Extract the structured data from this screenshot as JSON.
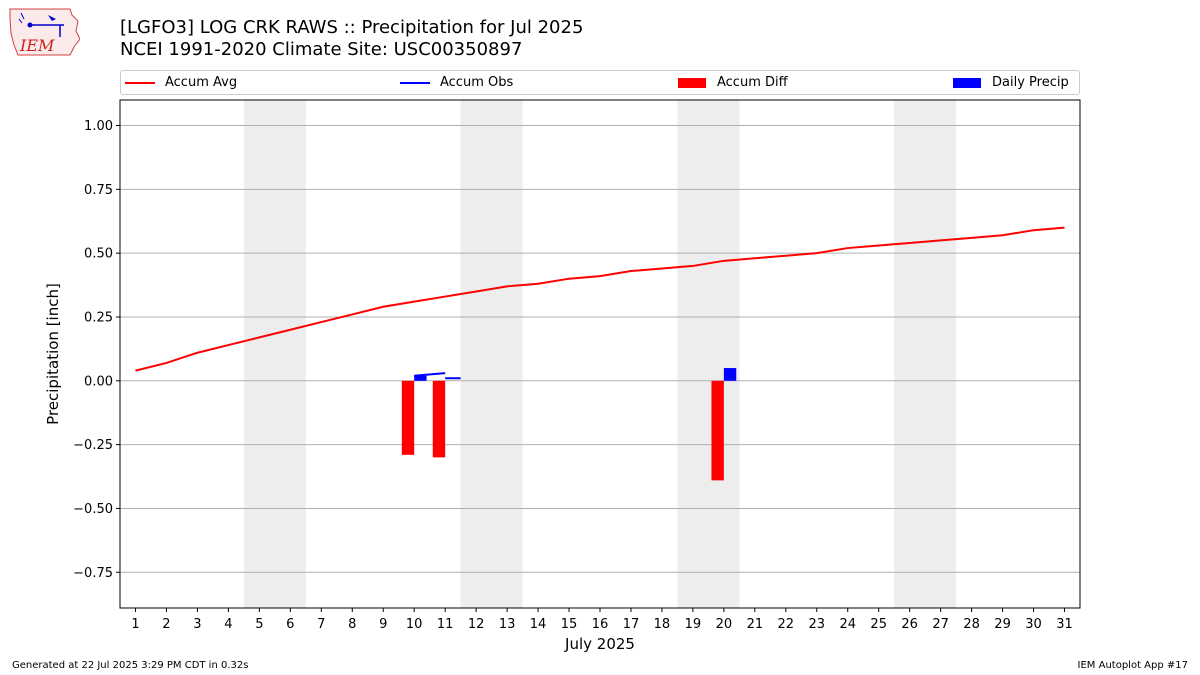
{
  "header": {
    "title_line1": "[LGFO3] LOG CRK RAWS :: Precipitation for Jul 2025",
    "title_line2": "NCEI 1991-2020 Climate Site: USC00350897",
    "logo_text": "IEM"
  },
  "legend": {
    "items": [
      {
        "label": "Accum Avg",
        "color": "#ff0000",
        "kind": "line"
      },
      {
        "label": "Accum Obs",
        "color": "#0000ff",
        "kind": "line"
      },
      {
        "label": "Accum Diff",
        "color": "#ff0000",
        "kind": "rect"
      },
      {
        "label": "Daily Precip",
        "color": "#0000ff",
        "kind": "rect"
      }
    ]
  },
  "footer": {
    "left": "Generated at 22 Jul 2025 3:29 PM CDT in 0.32s",
    "right": "IEM Autoplot App #17"
  },
  "chart_data": {
    "type": "bar",
    "xlabel": "July 2025",
    "ylabel": "Precipitation [inch]",
    "x": [
      1,
      2,
      3,
      4,
      5,
      6,
      7,
      8,
      9,
      10,
      11,
      12,
      13,
      14,
      15,
      16,
      17,
      18,
      19,
      20,
      21,
      22,
      23,
      24,
      25,
      26,
      27,
      28,
      29,
      30,
      31
    ],
    "xlim": [
      0.5,
      31.5
    ],
    "ylim": [
      -0.89,
      1.1
    ],
    "yticks": [
      1.0,
      0.75,
      0.5,
      0.25,
      0.0,
      -0.25,
      -0.5,
      -0.75
    ],
    "ytick_labels": [
      "1.00",
      "0.75",
      "0.50",
      "0.25",
      "0.00",
      "−0.25",
      "−0.50",
      "−0.75"
    ],
    "grid": "y",
    "weekend_bands": [
      [
        4.5,
        6.5
      ],
      [
        11.5,
        13.5
      ],
      [
        18.5,
        20.5
      ],
      [
        25.5,
        27.5
      ]
    ],
    "series": [
      {
        "name": "Accum Avg",
        "kind": "line",
        "color": "#ff0000",
        "x": [
          1,
          2,
          3,
          4,
          5,
          6,
          7,
          8,
          9,
          10,
          11,
          12,
          13,
          14,
          15,
          16,
          17,
          18,
          19,
          20,
          21,
          22,
          23,
          24,
          25,
          26,
          27,
          28,
          29,
          30,
          31
        ],
        "values": [
          0.04,
          0.07,
          0.11,
          0.14,
          0.17,
          0.2,
          0.23,
          0.26,
          0.29,
          0.31,
          0.33,
          0.35,
          0.37,
          0.38,
          0.4,
          0.41,
          0.43,
          0.44,
          0.45,
          0.47,
          0.48,
          0.49,
          0.5,
          0.52,
          0.53,
          0.54,
          0.55,
          0.56,
          0.57,
          0.59,
          0.6
        ]
      },
      {
        "name": "Accum Obs",
        "kind": "line",
        "color": "#0000ff",
        "segments": [
          {
            "x": [
              10,
              11
            ],
            "values": [
              0.02,
              0.03
            ]
          },
          {
            "x": [
              11,
              11.5
            ],
            "values": [
              0.01,
              0.01
            ]
          }
        ]
      },
      {
        "name": "Accum Diff",
        "kind": "bar",
        "color": "#ff0000",
        "offset": -0.2,
        "x": [
          10,
          11,
          20
        ],
        "values": [
          -0.29,
          -0.3,
          -0.39
        ]
      },
      {
        "name": "Daily Precip",
        "kind": "bar",
        "color": "#0000ff",
        "offset": 0.2,
        "x": [
          10,
          20
        ],
        "values": [
          0.02,
          0.05
        ]
      }
    ]
  }
}
